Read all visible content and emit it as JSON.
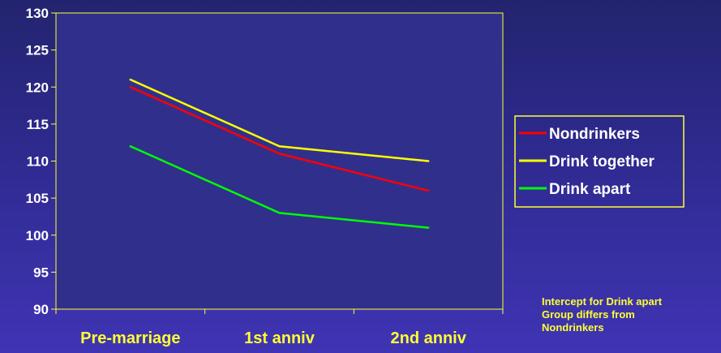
{
  "chart_data": {
    "type": "line",
    "title": "",
    "xlabel": "",
    "ylabel": "",
    "categories": [
      "Pre-marriage",
      "1st anniv",
      "2nd anniv"
    ],
    "ylim": [
      90,
      130
    ],
    "yticks": [
      90,
      95,
      100,
      105,
      110,
      115,
      120,
      125,
      130
    ],
    "grid": false,
    "legend_position": "right",
    "series": [
      {
        "name": "Nondrinkers",
        "values": [
          120,
          111,
          106
        ],
        "color": "#ff0000"
      },
      {
        "name": "Drink together",
        "values": [
          121,
          112,
          110
        ],
        "color": "#ffff00"
      },
      {
        "name": "Drink apart",
        "values": [
          112,
          103,
          101
        ],
        "color": "#00ff00"
      }
    ]
  },
  "colors": {
    "axis": "#ffff33",
    "plot_background": "#30308c",
    "legend_border": "#ffff33"
  },
  "annotation": {
    "lines": [
      "Intercept for Drink apart",
      "Group differs from",
      "Nondrinkers"
    ]
  }
}
